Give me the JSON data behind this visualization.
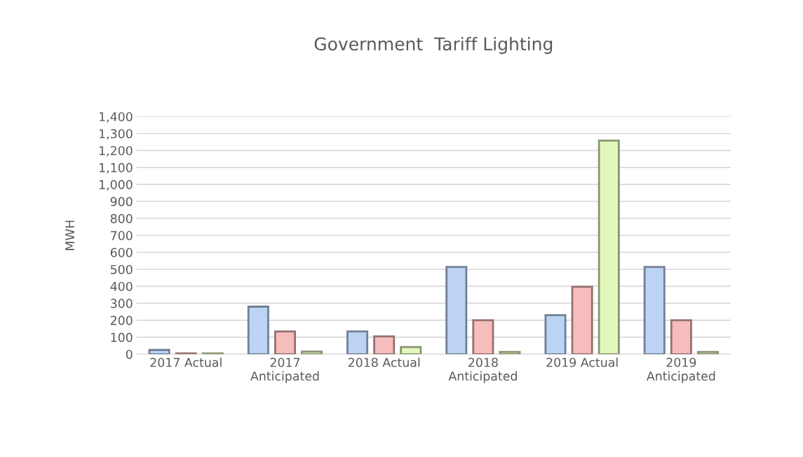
{
  "chart_data": {
    "type": "bar",
    "title": "Government  Tariff Lighting",
    "ylabel": "MWH",
    "categories": [
      "2017 Actual",
      "2017\nAnticipated",
      "2018 Actual",
      "2018\nAnticipated",
      "2019 Actual",
      "2019\nAnticipated"
    ],
    "series": [
      {
        "color": "#bcd3f5",
        "values": [
          25,
          280,
          134,
          514,
          230,
          514
        ]
      },
      {
        "color": "#f7bcbc",
        "values": [
          5,
          134,
          105,
          200,
          397,
          200
        ]
      },
      {
        "color": "#e2f7bc",
        "values": [
          5,
          15,
          42,
          13,
          1258,
          13
        ]
      }
    ],
    "ylim": [
      0,
      1400
    ],
    "yticks": [
      0,
      100,
      200,
      300,
      400,
      500,
      600,
      700,
      800,
      900,
      {
        "value": 1000,
        "label": "1,000"
      },
      {
        "value": 1100,
        "label": "1,100"
      },
      {
        "value": 1200,
        "label": "1,200"
      },
      {
        "value": 1300,
        "label": "1,300"
      },
      {
        "value": 1400,
        "label": "1,400"
      }
    ],
    "grid": "y"
  }
}
